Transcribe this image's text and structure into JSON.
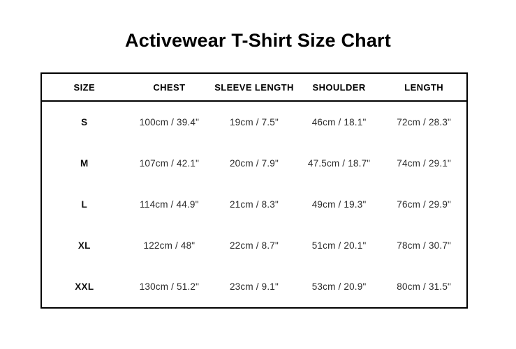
{
  "page": {
    "title": "Activewear T-Shirt Size Chart",
    "background_color": "#ffffff",
    "text_color": "#2b2b2b",
    "border_color": "#000000"
  },
  "chart_data": {
    "type": "table",
    "title": "Activewear T-Shirt Size Chart",
    "columns": [
      "SIZE",
      "CHEST",
      "SLEEVE LENGTH",
      "SHOULDER",
      "LENGTH"
    ],
    "rows": [
      [
        "S",
        "100cm / 39.4\"",
        "19cm / 7.5\"",
        "46cm / 18.1\"",
        "72cm / 28.3\""
      ],
      [
        "M",
        "107cm / 42.1\"",
        "20cm / 7.9\"",
        "47.5cm / 18.7\"",
        "74cm / 29.1\""
      ],
      [
        "L",
        "114cm / 44.9\"",
        "21cm / 8.3\"",
        "49cm / 19.3\"",
        "76cm / 29.9\""
      ],
      [
        "XL",
        "122cm / 48\"",
        "22cm / 8.7\"",
        "51cm / 20.1\"",
        "78cm / 30.7\""
      ],
      [
        "XXL",
        "130cm / 51.2\"",
        "23cm / 9.1\"",
        "53cm / 20.9\"",
        "80cm / 31.5\""
      ]
    ]
  }
}
